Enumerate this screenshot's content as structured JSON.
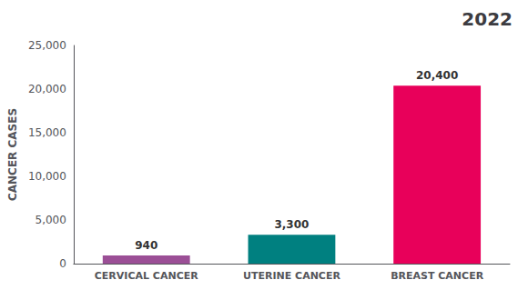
{
  "chart_data": {
    "type": "bar",
    "title": "2022",
    "categories": [
      "CERVICAL CANCER",
      "UTERINE CANCER",
      "BREAST CANCER"
    ],
    "values": [
      940,
      3300,
      20400
    ],
    "value_labels": [
      "940",
      "3,300",
      "20,400"
    ],
    "data_labels": true,
    "colors": [
      "#9B4F96",
      "#008080",
      "#E8005A"
    ],
    "ylabel": "CANCER CASES",
    "ylim": [
      0,
      25000
    ],
    "yticks": [
      0,
      {
        "value": 5000,
        "label": "5,000"
      },
      {
        "value": 10000,
        "label": "10,000"
      },
      {
        "value": 15000,
        "label": "15,000"
      },
      {
        "value": 20000,
        "label": "20,000"
      },
      {
        "value": 25000,
        "label": "25,000"
      }
    ],
    "grid": false
  }
}
